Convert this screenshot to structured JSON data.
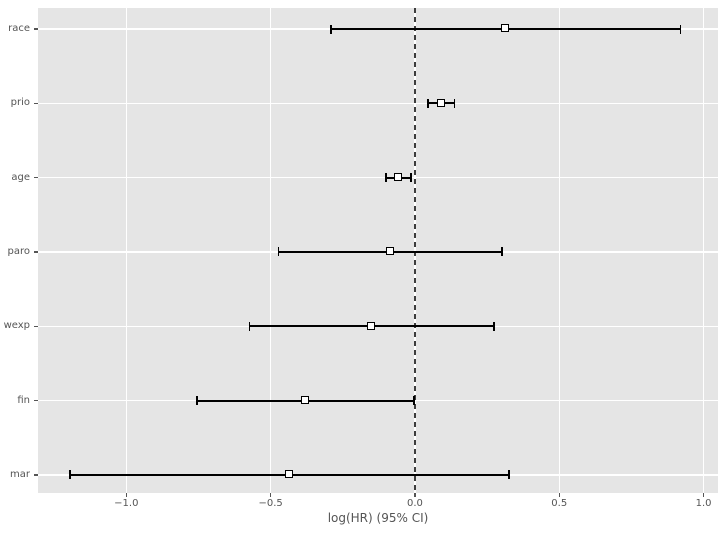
{
  "chart_data": {
    "type": "forest",
    "title": "",
    "xlabel": "log(HR) (95% CI)",
    "ylabel": "",
    "grid": true,
    "legend": null,
    "xlim": [
      -1.306,
      1.05
    ],
    "reference_line_x": 0.0,
    "x_ticks": [
      {
        "value": -1.0,
        "label": "−1.0"
      },
      {
        "value": -0.5,
        "label": "−0.5"
      },
      {
        "value": 0.0,
        "label": "0.0"
      },
      {
        "value": 0.5,
        "label": "0.5"
      },
      {
        "value": 1.0,
        "label": "1.0"
      }
    ],
    "categories": [
      "race",
      "prio",
      "age",
      "paro",
      "wexp",
      "fin",
      "mar"
    ],
    "rows": [
      {
        "label": "race",
        "coef": 0.314,
        "ci_low": -0.292,
        "ci_high": 0.92
      },
      {
        "label": "prio",
        "coef": 0.091,
        "ci_low": 0.046,
        "ci_high": 0.137
      },
      {
        "label": "age",
        "coef": -0.057,
        "ci_low": -0.101,
        "ci_high": -0.014
      },
      {
        "label": "paro",
        "coef": -0.086,
        "ci_low": -0.473,
        "ci_high": 0.302
      },
      {
        "label": "wexp",
        "coef": -0.15,
        "ci_low": -0.573,
        "ci_high": 0.274
      },
      {
        "label": "fin",
        "coef": -0.379,
        "ci_low": -0.755,
        "ci_high": -0.004
      },
      {
        "label": "mar",
        "coef": -0.434,
        "ci_low": -1.194,
        "ci_high": 0.326
      }
    ],
    "colors": {
      "panel_bg": "#e5e5e5",
      "grid": "#ffffff",
      "text": "#555555",
      "errorbar": "#000000",
      "marker_fill": "#ffffff",
      "marker_edge": "#000000",
      "reference_line": "#3c3c3c"
    }
  }
}
